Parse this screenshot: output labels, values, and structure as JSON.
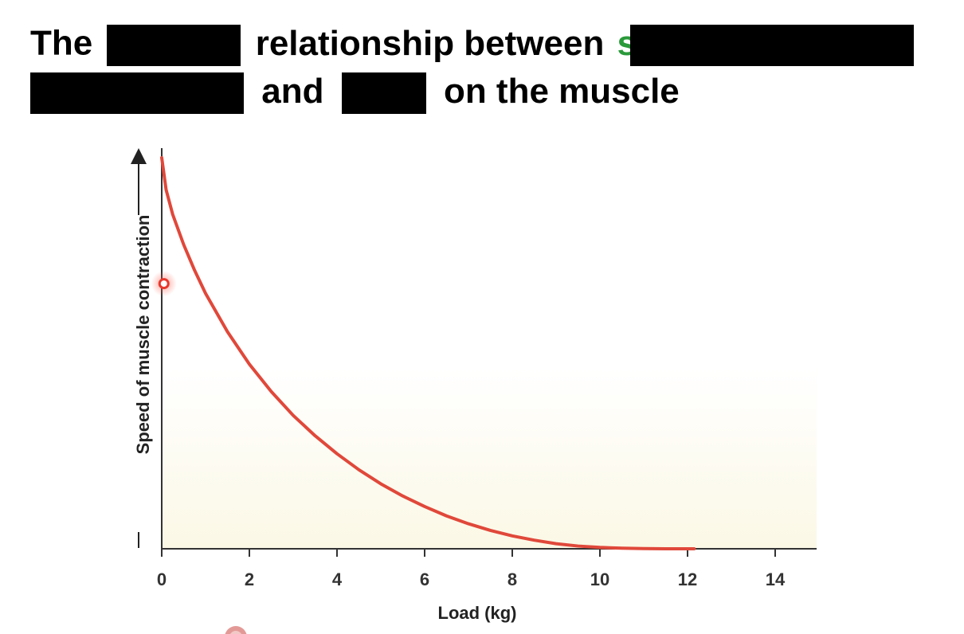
{
  "title": {
    "line1": {
      "w1": "The",
      "w2": "relationship between"
    },
    "line2": {
      "w1": "and",
      "w2": "on the muscle"
    }
  },
  "colors": {
    "curve": "#e0483a",
    "marker": "#e8382c",
    "redaction": "#000000",
    "green_text": "#2a9a3a",
    "plot_fill_top": "#ffffff",
    "plot_fill_bottom": "#fbf8e6"
  },
  "chart_data": {
    "type": "line",
    "xlabel": "Load (kg)",
    "ylabel": "Speed of muscle contraction",
    "xlim": [
      0,
      15
    ],
    "x_ticks": [
      "0",
      "2",
      "4",
      "6",
      "8",
      "10",
      "12",
      "14"
    ],
    "x_tick_values": [
      0,
      2,
      4,
      6,
      8,
      10,
      12,
      14
    ],
    "ylim": [
      0,
      100
    ],
    "y_ticks": [],
    "grid": false,
    "series": [
      {
        "x": [
          0,
          0.1,
          0.25,
          0.5,
          0.75,
          1,
          1.5,
          2,
          2.5,
          3,
          3.5,
          4,
          4.5,
          5,
          5.5,
          6,
          6.5,
          7,
          7.5,
          8,
          8.5,
          9,
          9.5,
          10,
          10.5,
          11,
          11.5,
          12,
          12.15
        ],
        "y": [
          100,
          91.8,
          85.5,
          77.8,
          71.2,
          65.3,
          55.5,
          47.2,
          40.2,
          34.1,
          28.9,
          24.3,
          20.2,
          16.6,
          13.5,
          10.8,
          8.4,
          6.4,
          4.7,
          3.3,
          2.2,
          1.3,
          0.7,
          0.35,
          0.15,
          0.05,
          0.01,
          0,
          0
        ]
      }
    ],
    "markers": [
      {
        "x": 0.05,
        "y": 67.8
      }
    ]
  }
}
